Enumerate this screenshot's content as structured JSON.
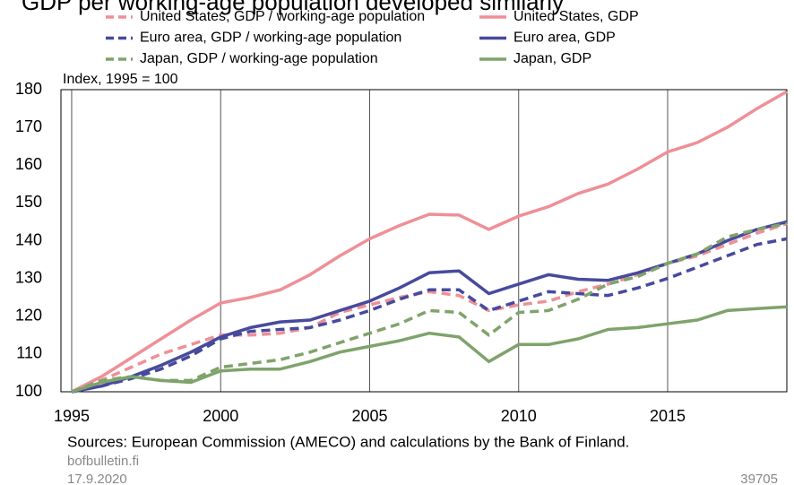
{
  "chart_data": {
    "type": "line",
    "title": "GDP per working-age population developed similarly",
    "annotation": "Index, 1995 = 100",
    "source": "Sources: European Commission (AMECO) and calculations by the Bank of Finland.",
    "site": "bofbulletin.fi",
    "date": "17.9.2020",
    "chart_id": "39705",
    "x": [
      1995,
      1996,
      1997,
      1998,
      1999,
      2000,
      2001,
      2002,
      2003,
      2004,
      2005,
      2006,
      2007,
      2008,
      2009,
      2010,
      2011,
      2012,
      2013,
      2014,
      2015,
      2016,
      2017,
      2018,
      2019
    ],
    "xlim": [
      1994.64,
      2019
    ],
    "xticks": [
      1995,
      2000,
      2005,
      2010,
      2015
    ],
    "ylim": [
      100,
      180
    ],
    "yticks": [
      100,
      110,
      120,
      130,
      140,
      150,
      160,
      170,
      180
    ],
    "grid": true,
    "series": [
      {
        "name": "United States, GDP / working-age population",
        "color": "#ef8f96",
        "dashed": true,
        "values": [
          100,
          103,
          106.5,
          110,
          112.5,
          115,
          115,
          115.5,
          117,
          121,
          123,
          125,
          126.5,
          125.5,
          121.5,
          123,
          124,
          126.5,
          128.5,
          131,
          134,
          136,
          139,
          142,
          144.5
        ]
      },
      {
        "name": "United States, GDP",
        "color": "#ef8f96",
        "dashed": false,
        "values": [
          100,
          104,
          109,
          114,
          119,
          123.5,
          125,
          127,
          131,
          136,
          140.5,
          144,
          147,
          146.8,
          143,
          146.5,
          149,
          152.5,
          155,
          159,
          163.5,
          166,
          170,
          175,
          179.5
        ]
      },
      {
        "name": "Euro area, GDP / working-age population",
        "color": "#474a9c",
        "dashed": true,
        "values": [
          100,
          101.5,
          103.5,
          106,
          109.5,
          114,
          116,
          116.5,
          117,
          119,
          121.5,
          124.5,
          127,
          127,
          121.5,
          124,
          126.5,
          126,
          125.5,
          127.5,
          130,
          133,
          136,
          139,
          140.5
        ]
      },
      {
        "name": "Euro area, GDP",
        "color": "#474a9c",
        "dashed": false,
        "values": [
          100,
          101.5,
          104,
          107,
          110.5,
          114.5,
          117,
          118.5,
          119,
          121.5,
          124,
          127.5,
          131.5,
          132,
          126,
          128.5,
          131,
          129.8,
          129.5,
          131.5,
          134,
          136.5,
          140,
          143,
          145
        ]
      },
      {
        "name": "Japan, GDP / working-age population",
        "color": "#7fa36b",
        "dashed": true,
        "values": [
          100,
          103,
          104,
          103,
          103,
          106.5,
          107.5,
          108.5,
          110.5,
          113,
          115.5,
          118,
          121.5,
          121,
          115,
          121,
          121.5,
          124.5,
          128.5,
          130.5,
          134,
          136.5,
          141,
          143,
          144.5
        ]
      },
      {
        "name": "Japan, GDP",
        "color": "#7fa36b",
        "dashed": false,
        "values": [
          100,
          102.5,
          104,
          103,
          102.5,
          105.5,
          106,
          106,
          108,
          110.5,
          112,
          113.5,
          115.5,
          114.5,
          108,
          112.5,
          112.5,
          114,
          116.5,
          117,
          118,
          119,
          121.5,
          122,
          122.5
        ]
      }
    ]
  }
}
